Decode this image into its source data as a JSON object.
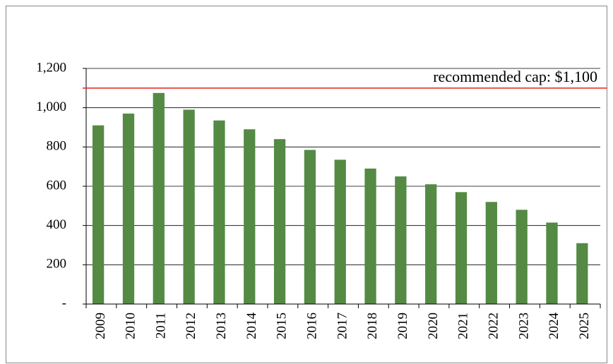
{
  "chart_data": {
    "type": "bar",
    "categories": [
      "2009",
      "2010",
      "2011",
      "2012",
      "2013",
      "2014",
      "2015",
      "2016",
      "2017",
      "2018",
      "2019",
      "2020",
      "2021",
      "2022",
      "2023",
      "2024",
      "2025"
    ],
    "values": [
      910,
      970,
      1075,
      990,
      935,
      890,
      840,
      785,
      735,
      690,
      650,
      610,
      570,
      520,
      480,
      415,
      310
    ],
    "color": "#548a43",
    "ylim": [
      0,
      1200
    ],
    "yticks": [
      {
        "value": 0,
        "label": "-"
      },
      200,
      400,
      600,
      800,
      {
        "value": 1000,
        "label": "1,000"
      },
      {
        "value": 1200,
        "label": "1,200"
      }
    ],
    "grid": true,
    "reference_line": {
      "value": 1100,
      "label": "recommended cap: $1,100",
      "color": "#e8231f"
    }
  }
}
